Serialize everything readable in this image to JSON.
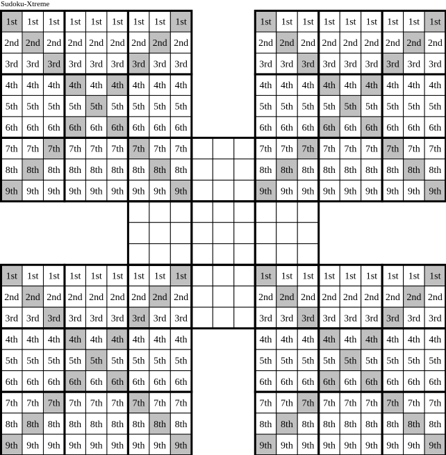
{
  "title": "Sudoku-Xtreme",
  "row_labels": [
    "1st",
    "2nd",
    "3rd",
    "4th",
    "5th",
    "6th",
    "7th",
    "8th",
    "9th"
  ],
  "colors": {
    "shaded": "#c0c0c0",
    "line": "#000000",
    "background": "#ffffff"
  },
  "shading_pattern": "both-diagonals",
  "grids": [
    {
      "name": "top-left",
      "labeled": true
    },
    {
      "name": "top-right",
      "labeled": true
    },
    {
      "name": "center",
      "labeled": false
    },
    {
      "name": "bottom-left",
      "labeled": true
    },
    {
      "name": "bottom-right",
      "labeled": true
    }
  ]
}
